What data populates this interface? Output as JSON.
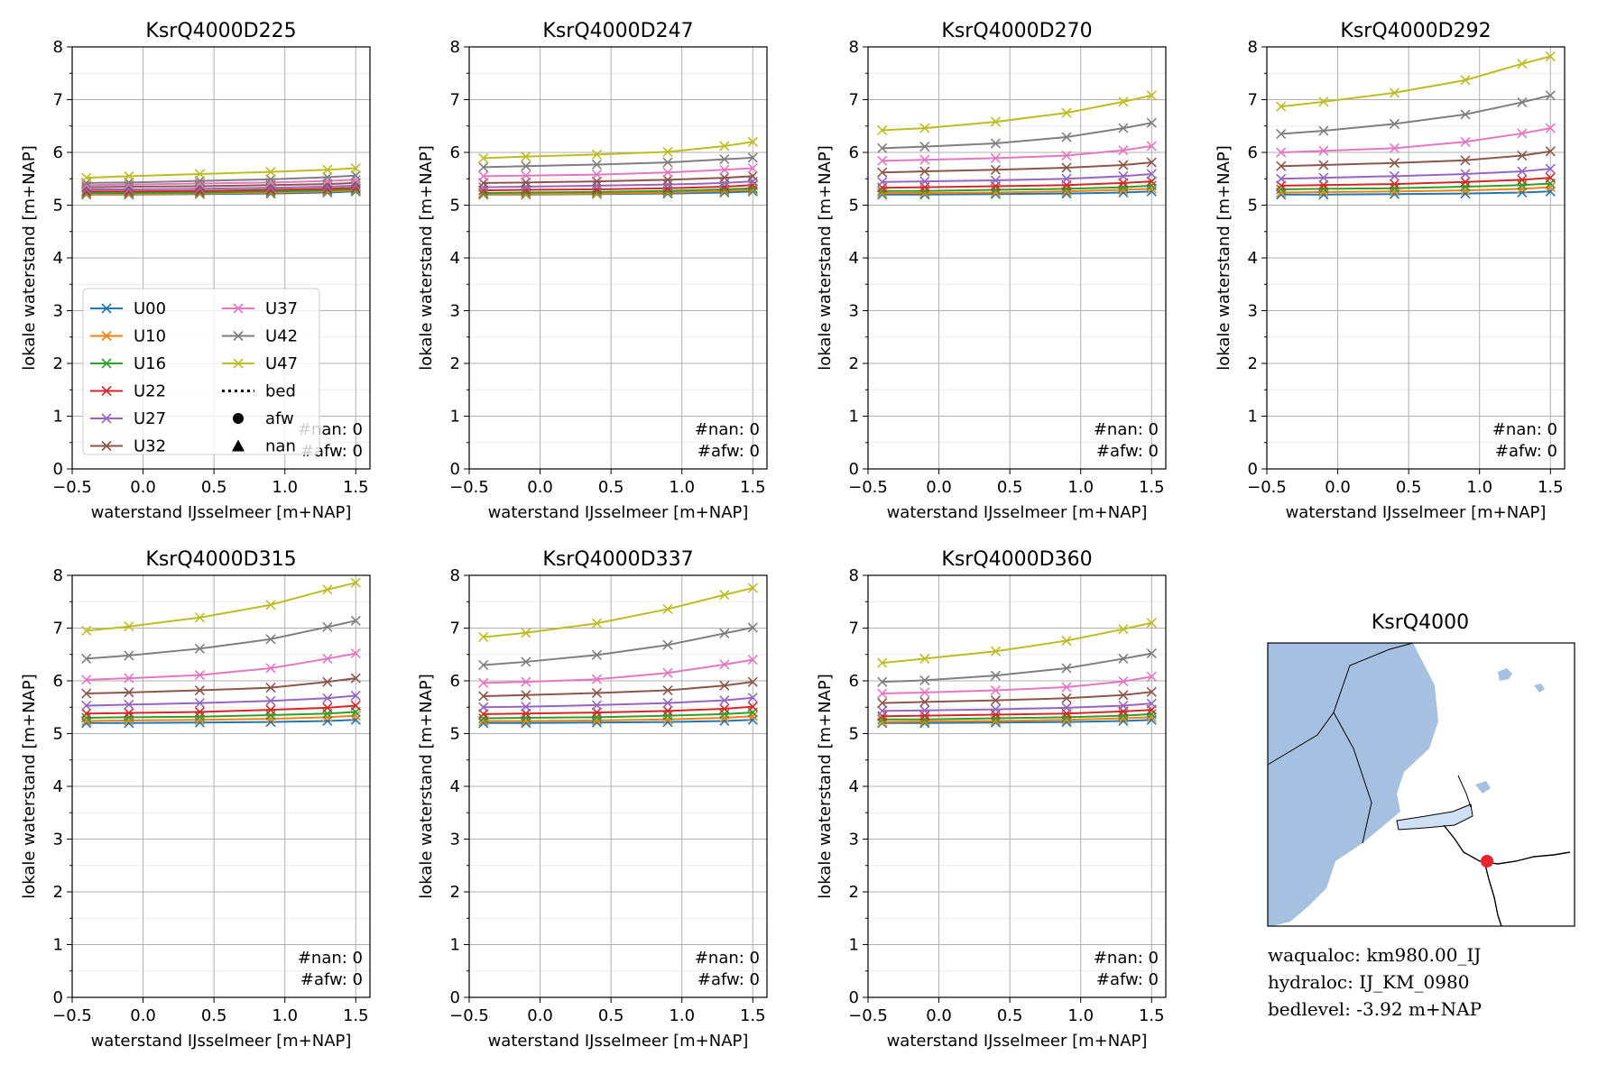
{
  "figure": {
    "map_title": "KsrQ4000",
    "info": {
      "waqualoc": "waqualoc: km980.00_IJ",
      "hydraloc": "hydraloc: IJ_KM_0980",
      "bedlevel": "bedlevel: -3.92 m+NAP"
    },
    "colors": {
      "U00": "#1f77b4",
      "U10": "#ff7f0e",
      "U16": "#2ca02c",
      "U22": "#d62728",
      "U27": "#9467bd",
      "U32": "#8c564b",
      "U37": "#e377c2",
      "U42": "#7f7f7f",
      "U47": "#bcbd22",
      "water": "#a5c0e0",
      "water_light": "#cfe0f5",
      "marker": "#e8242a"
    },
    "legend": {
      "entries": [
        {
          "label": "U00",
          "kind": "line-x",
          "series": "U00"
        },
        {
          "label": "U10",
          "kind": "line-x",
          "series": "U10"
        },
        {
          "label": "U16",
          "kind": "line-x",
          "series": "U16"
        },
        {
          "label": "U22",
          "kind": "line-x",
          "series": "U22"
        },
        {
          "label": "U27",
          "kind": "line-x",
          "series": "U27"
        },
        {
          "label": "U32",
          "kind": "line-x",
          "series": "U32"
        },
        {
          "label": "U37",
          "kind": "line-x",
          "series": "U37"
        },
        {
          "label": "U42",
          "kind": "line-x",
          "series": "U42"
        },
        {
          "label": "U47",
          "kind": "line-x",
          "series": "U47"
        },
        {
          "label": "bed",
          "kind": "dotted",
          "series": ""
        },
        {
          "label": "afw",
          "kind": "circle",
          "series": ""
        },
        {
          "label": "nan",
          "kind": "triangle",
          "series": ""
        }
      ]
    }
  },
  "chart_data": [
    {
      "type": "line",
      "title": "KsrQ4000D225",
      "xlabel": "waterstand IJsselmeer [m+NAP]",
      "ylabel": "lokale waterstand [m+NAP]",
      "xlim": [
        -0.5,
        1.6
      ],
      "ylim": [
        0,
        8
      ],
      "xticks": [
        "−0.5",
        "0.0",
        "0.5",
        "1.0",
        "1.5"
      ],
      "yticks": [
        "0",
        "1",
        "2",
        "3",
        "4",
        "5",
        "6",
        "7",
        "8"
      ],
      "grid": true,
      "legend": "lower-left",
      "nan_label": "#nan: 0",
      "afw_label": "#afw: 0",
      "x": [
        -0.4,
        -0.1,
        0.4,
        0.9,
        1.3,
        1.5
      ],
      "series": [
        {
          "name": "U00",
          "values": [
            5.2,
            5.2,
            5.21,
            5.22,
            5.24,
            5.26
          ]
        },
        {
          "name": "U10",
          "values": [
            5.21,
            5.21,
            5.22,
            5.24,
            5.26,
            5.28
          ]
        },
        {
          "name": "U16",
          "values": [
            5.23,
            5.23,
            5.24,
            5.26,
            5.28,
            5.3
          ]
        },
        {
          "name": "U22",
          "values": [
            5.26,
            5.26,
            5.27,
            5.29,
            5.31,
            5.33
          ]
        },
        {
          "name": "U27",
          "values": [
            5.3,
            5.3,
            5.31,
            5.33,
            5.35,
            5.37
          ]
        },
        {
          "name": "U32",
          "values": [
            5.34,
            5.35,
            5.36,
            5.38,
            5.4,
            5.42
          ]
        },
        {
          "name": "U37",
          "values": [
            5.38,
            5.39,
            5.41,
            5.43,
            5.46,
            5.48
          ]
        },
        {
          "name": "U42",
          "values": [
            5.42,
            5.43,
            5.46,
            5.49,
            5.53,
            5.56
          ]
        },
        {
          "name": "U47",
          "values": [
            5.52,
            5.55,
            5.59,
            5.63,
            5.67,
            5.7
          ]
        }
      ]
    },
    {
      "type": "line",
      "title": "KsrQ4000D247",
      "xlabel": "waterstand IJsselmeer [m+NAP]",
      "ylabel": "lokale waterstand [m+NAP]",
      "xlim": [
        -0.5,
        1.6
      ],
      "ylim": [
        0,
        8
      ],
      "xticks": [
        "−0.5",
        "0.0",
        "0.5",
        "1.0",
        "1.5"
      ],
      "yticks": [
        "0",
        "1",
        "2",
        "3",
        "4",
        "5",
        "6",
        "7",
        "8"
      ],
      "grid": true,
      "legend": "",
      "nan_label": "#nan: 0",
      "afw_label": "#afw: 0",
      "x": [
        -0.4,
        -0.1,
        0.4,
        0.9,
        1.3,
        1.5
      ],
      "series": [
        {
          "name": "U00",
          "values": [
            5.2,
            5.2,
            5.21,
            5.22,
            5.24,
            5.26
          ]
        },
        {
          "name": "U10",
          "values": [
            5.21,
            5.21,
            5.22,
            5.24,
            5.27,
            5.29
          ]
        },
        {
          "name": "U16",
          "values": [
            5.23,
            5.24,
            5.25,
            5.27,
            5.3,
            5.32
          ]
        },
        {
          "name": "U22",
          "values": [
            5.28,
            5.29,
            5.3,
            5.32,
            5.35,
            5.38
          ]
        },
        {
          "name": "U27",
          "values": [
            5.34,
            5.35,
            5.37,
            5.39,
            5.42,
            5.45
          ]
        },
        {
          "name": "U32",
          "values": [
            5.42,
            5.43,
            5.45,
            5.48,
            5.52,
            5.55
          ]
        },
        {
          "name": "U37",
          "values": [
            5.55,
            5.56,
            5.58,
            5.62,
            5.67,
            5.7
          ]
        },
        {
          "name": "U42",
          "values": [
            5.72,
            5.74,
            5.77,
            5.81,
            5.87,
            5.9
          ]
        },
        {
          "name": "U47",
          "values": [
            5.89,
            5.92,
            5.96,
            6.01,
            6.12,
            6.2
          ]
        }
      ]
    },
    {
      "type": "line",
      "title": "KsrQ4000D270",
      "xlabel": "waterstand IJsselmeer [m+NAP]",
      "ylabel": "lokale waterstand [m+NAP]",
      "xlim": [
        -0.5,
        1.6
      ],
      "ylim": [
        0,
        8
      ],
      "xticks": [
        "−0.5",
        "0.0",
        "0.5",
        "1.0",
        "1.5"
      ],
      "yticks": [
        "0",
        "1",
        "2",
        "3",
        "4",
        "5",
        "6",
        "7",
        "8"
      ],
      "grid": true,
      "legend": "",
      "nan_label": "#nan: 0",
      "afw_label": "#afw: 0",
      "x": [
        -0.4,
        -0.1,
        0.4,
        0.9,
        1.3,
        1.5
      ],
      "series": [
        {
          "name": "U00",
          "values": [
            5.2,
            5.2,
            5.21,
            5.22,
            5.24,
            5.26
          ]
        },
        {
          "name": "U10",
          "values": [
            5.23,
            5.23,
            5.24,
            5.26,
            5.29,
            5.31
          ]
        },
        {
          "name": "U16",
          "values": [
            5.27,
            5.27,
            5.29,
            5.31,
            5.34,
            5.37
          ]
        },
        {
          "name": "U22",
          "values": [
            5.33,
            5.34,
            5.36,
            5.38,
            5.42,
            5.45
          ]
        },
        {
          "name": "U27",
          "values": [
            5.44,
            5.45,
            5.47,
            5.5,
            5.55,
            5.59
          ]
        },
        {
          "name": "U32",
          "values": [
            5.62,
            5.64,
            5.67,
            5.71,
            5.76,
            5.81
          ]
        },
        {
          "name": "U37",
          "values": [
            5.84,
            5.86,
            5.89,
            5.94,
            6.04,
            6.12
          ]
        },
        {
          "name": "U42",
          "values": [
            6.08,
            6.11,
            6.17,
            6.29,
            6.46,
            6.56
          ]
        },
        {
          "name": "U47",
          "values": [
            6.42,
            6.46,
            6.58,
            6.75,
            6.96,
            7.08
          ]
        }
      ]
    },
    {
      "type": "line",
      "title": "KsrQ4000D292",
      "xlabel": "waterstand IJsselmeer [m+NAP]",
      "ylabel": "lokale waterstand [m+NAP]",
      "xlim": [
        -0.5,
        1.6
      ],
      "ylim": [
        0,
        8
      ],
      "xticks": [
        "−0.5",
        "0.0",
        "0.5",
        "1.0",
        "1.5"
      ],
      "yticks": [
        "0",
        "1",
        "2",
        "3",
        "4",
        "5",
        "6",
        "7",
        "8"
      ],
      "grid": true,
      "legend": "",
      "nan_label": "#nan: 0",
      "afw_label": "#afw: 0",
      "x": [
        -0.4,
        -0.1,
        0.4,
        0.9,
        1.3,
        1.5
      ],
      "series": [
        {
          "name": "U00",
          "values": [
            5.2,
            5.2,
            5.21,
            5.22,
            5.24,
            5.26
          ]
        },
        {
          "name": "U10",
          "values": [
            5.24,
            5.25,
            5.26,
            5.28,
            5.31,
            5.34
          ]
        },
        {
          "name": "U16",
          "values": [
            5.3,
            5.31,
            5.32,
            5.35,
            5.38,
            5.41
          ]
        },
        {
          "name": "U22",
          "values": [
            5.37,
            5.38,
            5.4,
            5.44,
            5.48,
            5.52
          ]
        },
        {
          "name": "U27",
          "values": [
            5.5,
            5.52,
            5.55,
            5.59,
            5.64,
            5.69
          ]
        },
        {
          "name": "U32",
          "values": [
            5.74,
            5.76,
            5.8,
            5.85,
            5.94,
            6.02
          ]
        },
        {
          "name": "U37",
          "values": [
            6.0,
            6.03,
            6.08,
            6.2,
            6.36,
            6.46
          ]
        },
        {
          "name": "U42",
          "values": [
            6.35,
            6.41,
            6.54,
            6.72,
            6.95,
            7.08
          ]
        },
        {
          "name": "U47",
          "values": [
            6.87,
            6.96,
            7.13,
            7.37,
            7.68,
            7.82
          ]
        }
      ]
    },
    {
      "type": "line",
      "title": "KsrQ4000D315",
      "xlabel": "waterstand IJsselmeer [m+NAP]",
      "ylabel": "lokale waterstand [m+NAP]",
      "xlim": [
        -0.5,
        1.6
      ],
      "ylim": [
        0,
        8
      ],
      "xticks": [
        "−0.5",
        "0.0",
        "0.5",
        "1.0",
        "1.5"
      ],
      "yticks": [
        "0",
        "1",
        "2",
        "3",
        "4",
        "5",
        "6",
        "7",
        "8"
      ],
      "grid": true,
      "legend": "",
      "nan_label": "#nan: 0",
      "afw_label": "#afw: 0",
      "x": [
        -0.4,
        -0.1,
        0.4,
        0.9,
        1.3,
        1.5
      ],
      "series": [
        {
          "name": "U00",
          "values": [
            5.2,
            5.2,
            5.21,
            5.22,
            5.24,
            5.26
          ]
        },
        {
          "name": "U10",
          "values": [
            5.24,
            5.25,
            5.26,
            5.28,
            5.31,
            5.34
          ]
        },
        {
          "name": "U16",
          "values": [
            5.3,
            5.31,
            5.32,
            5.35,
            5.38,
            5.41
          ]
        },
        {
          "name": "U22",
          "values": [
            5.38,
            5.39,
            5.41,
            5.45,
            5.49,
            5.53
          ]
        },
        {
          "name": "U27",
          "values": [
            5.53,
            5.55,
            5.58,
            5.62,
            5.67,
            5.72
          ]
        },
        {
          "name": "U32",
          "values": [
            5.76,
            5.78,
            5.82,
            5.87,
            5.98,
            6.05
          ]
        },
        {
          "name": "U37",
          "values": [
            6.02,
            6.05,
            6.11,
            6.24,
            6.42,
            6.52
          ]
        },
        {
          "name": "U42",
          "values": [
            6.42,
            6.48,
            6.61,
            6.79,
            7.02,
            7.14
          ]
        },
        {
          "name": "U47",
          "values": [
            6.95,
            7.03,
            7.2,
            7.44,
            7.73,
            7.86
          ]
        }
      ]
    },
    {
      "type": "line",
      "title": "KsrQ4000D337",
      "xlabel": "waterstand IJsselmeer [m+NAP]",
      "ylabel": "lokale waterstand [m+NAP]",
      "xlim": [
        -0.5,
        1.6
      ],
      "ylim": [
        0,
        8
      ],
      "xticks": [
        "−0.5",
        "0.0",
        "0.5",
        "1.0",
        "1.5"
      ],
      "yticks": [
        "0",
        "1",
        "2",
        "3",
        "4",
        "5",
        "6",
        "7",
        "8"
      ],
      "grid": true,
      "legend": "",
      "nan_label": "#nan: 0",
      "afw_label": "#afw: 0",
      "x": [
        -0.4,
        -0.1,
        0.4,
        0.9,
        1.3,
        1.5
      ],
      "series": [
        {
          "name": "U00",
          "values": [
            5.2,
            5.2,
            5.21,
            5.22,
            5.24,
            5.26
          ]
        },
        {
          "name": "U10",
          "values": [
            5.24,
            5.24,
            5.25,
            5.27,
            5.3,
            5.33
          ]
        },
        {
          "name": "U16",
          "values": [
            5.29,
            5.3,
            5.31,
            5.34,
            5.37,
            5.4
          ]
        },
        {
          "name": "U22",
          "values": [
            5.37,
            5.38,
            5.4,
            5.43,
            5.47,
            5.51
          ]
        },
        {
          "name": "U27",
          "values": [
            5.5,
            5.51,
            5.54,
            5.58,
            5.63,
            5.68
          ]
        },
        {
          "name": "U32",
          "values": [
            5.71,
            5.73,
            5.77,
            5.82,
            5.91,
            5.98
          ]
        },
        {
          "name": "U37",
          "values": [
            5.96,
            5.98,
            6.03,
            6.15,
            6.31,
            6.4
          ]
        },
        {
          "name": "U42",
          "values": [
            6.3,
            6.36,
            6.49,
            6.68,
            6.9,
            7.01
          ]
        },
        {
          "name": "U47",
          "values": [
            6.83,
            6.91,
            7.09,
            7.36,
            7.63,
            7.76
          ]
        }
      ]
    },
    {
      "type": "line",
      "title": "KsrQ4000D360",
      "xlabel": "waterstand IJsselmeer [m+NAP]",
      "ylabel": "lokale waterstand [m+NAP]",
      "xlim": [
        -0.5,
        1.6
      ],
      "ylim": [
        0,
        8
      ],
      "xticks": [
        "−0.5",
        "0.0",
        "0.5",
        "1.0",
        "1.5"
      ],
      "yticks": [
        "0",
        "1",
        "2",
        "3",
        "4",
        "5",
        "6",
        "7",
        "8"
      ],
      "grid": true,
      "legend": "",
      "nan_label": "#nan: 0",
      "afw_label": "#afw: 0",
      "x": [
        -0.4,
        -0.1,
        0.4,
        0.9,
        1.3,
        1.5
      ],
      "series": [
        {
          "name": "U00",
          "values": [
            5.2,
            5.2,
            5.21,
            5.22,
            5.24,
            5.26
          ]
        },
        {
          "name": "U10",
          "values": [
            5.22,
            5.23,
            5.24,
            5.26,
            5.29,
            5.31
          ]
        },
        {
          "name": "U16",
          "values": [
            5.27,
            5.27,
            5.29,
            5.31,
            5.34,
            5.37
          ]
        },
        {
          "name": "U22",
          "values": [
            5.33,
            5.34,
            5.36,
            5.38,
            5.42,
            5.45
          ]
        },
        {
          "name": "U27",
          "values": [
            5.43,
            5.44,
            5.46,
            5.49,
            5.53,
            5.57
          ]
        },
        {
          "name": "U32",
          "values": [
            5.58,
            5.6,
            5.63,
            5.67,
            5.73,
            5.79
          ]
        },
        {
          "name": "U37",
          "values": [
            5.76,
            5.78,
            5.82,
            5.88,
            5.99,
            6.08
          ]
        },
        {
          "name": "U42",
          "values": [
            5.98,
            6.01,
            6.1,
            6.24,
            6.42,
            6.52
          ]
        },
        {
          "name": "U47",
          "values": [
            6.34,
            6.42,
            6.56,
            6.76,
            6.98,
            7.1
          ]
        }
      ]
    }
  ]
}
